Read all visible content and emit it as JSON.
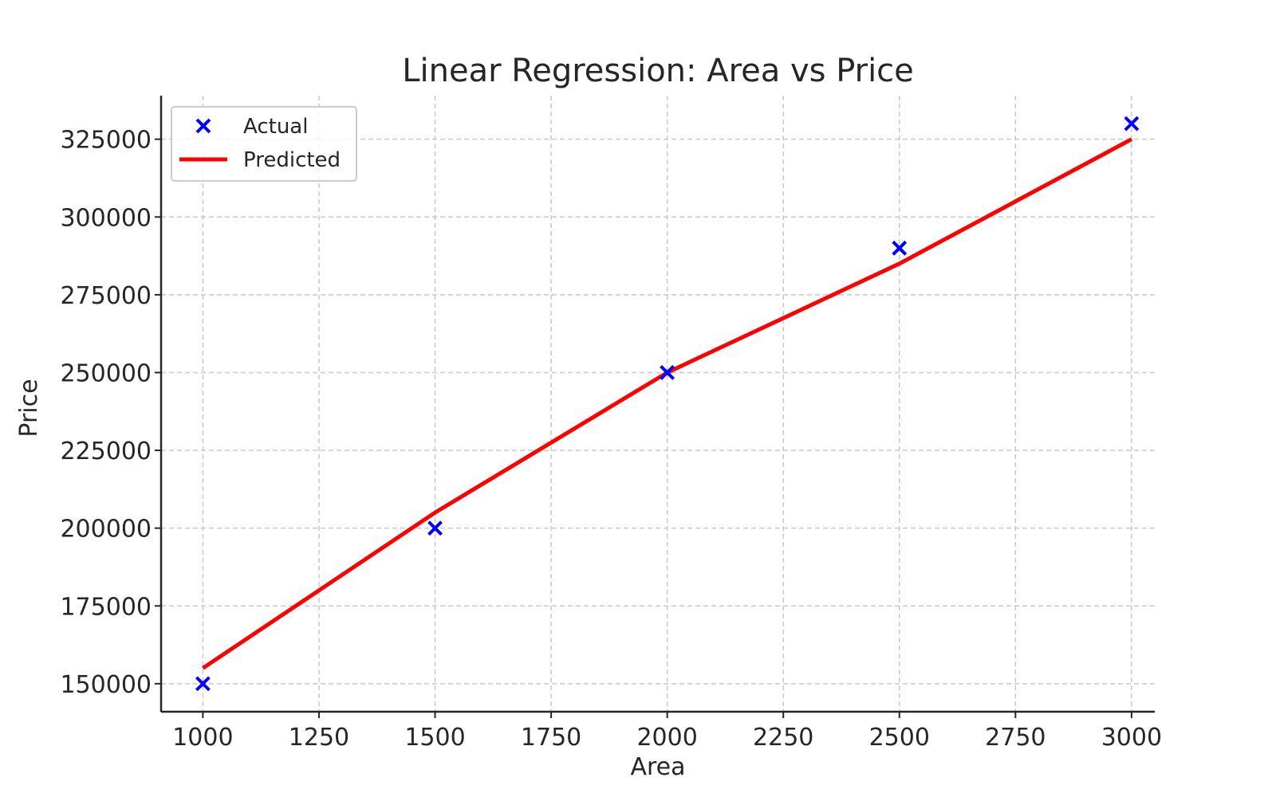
{
  "chart_data": {
    "type": "scatter",
    "title": "Linear Regression: Area vs Price",
    "xlabel": "Area",
    "ylabel": "Price",
    "xlim": [
      910,
      3050
    ],
    "ylim": [
      141000,
      339000
    ],
    "xticks": [
      1000,
      1250,
      1500,
      1750,
      2000,
      2250,
      2500,
      2750,
      3000
    ],
    "yticks": [
      150000,
      175000,
      200000,
      225000,
      250000,
      275000,
      300000,
      325000
    ],
    "grid": true,
    "legend_position": "top-left",
    "series": [
      {
        "name": "Actual",
        "kind": "scatter",
        "marker": "x",
        "color": "#0000ff",
        "x": [
          1000,
          1500,
          2000,
          2500,
          3000
        ],
        "y": [
          150000,
          200000,
          250000,
          290000,
          330000
        ]
      },
      {
        "name": "Predicted",
        "kind": "line",
        "color": "#ff0000",
        "x": [
          1000,
          1500,
          2000,
          2500,
          3000
        ],
        "y": [
          155000,
          205000,
          250000,
          285000,
          325000
        ]
      }
    ]
  }
}
